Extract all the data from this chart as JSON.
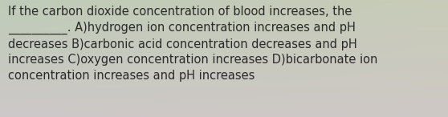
{
  "text": "If the carbon dioxide concentration of blood increases, the\n__________. A)hydrogen ion concentration increases and pH\ndecreases B)carbonic acid concentration decreases and pH\nincreases C)oxygen concentration increases D)bicarbonate ion\nconcentration increases and pH increases",
  "text_color": "#2a2a2a",
  "font_size": 10.5,
  "bg_color_topleft": "#bfccb8",
  "bg_color_topright": "#c8ccb8",
  "bg_color_bottomleft": "#cdc8c8",
  "bg_color_bottomright": "#cec8c5",
  "fig_width": 5.58,
  "fig_height": 1.46,
  "dpi": 100
}
